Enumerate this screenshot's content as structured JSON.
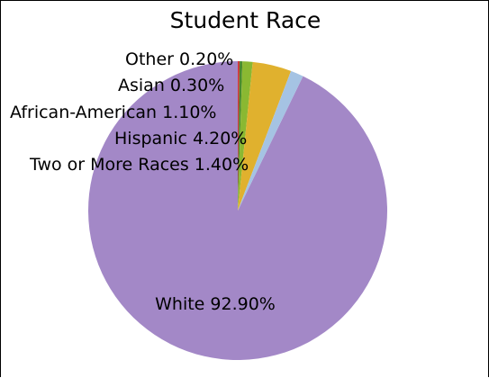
{
  "chart_data": {
    "type": "pie",
    "title": "Student Race",
    "slices": [
      {
        "label": "White",
        "value": 92.9,
        "display": "White 92.90%",
        "color": "#a388c7"
      },
      {
        "label": "Other",
        "value": 0.2,
        "display": "Other 0.20%",
        "color": "#cf3a3a"
      },
      {
        "label": "Asian",
        "value": 0.3,
        "display": "Asian 0.30%",
        "color": "#4a8a2e"
      },
      {
        "label": "African-American",
        "value": 1.1,
        "display": "African-American 1.10%",
        "color": "#8ab832"
      },
      {
        "label": "Hispanic",
        "value": 4.2,
        "display": "Hispanic 4.20%",
        "color": "#e0b12e"
      },
      {
        "label": "Two or More Races",
        "value": 1.4,
        "display": "Two or More Races 1.40%",
        "color": "#a5c3e3"
      }
    ],
    "legend": "none"
  }
}
